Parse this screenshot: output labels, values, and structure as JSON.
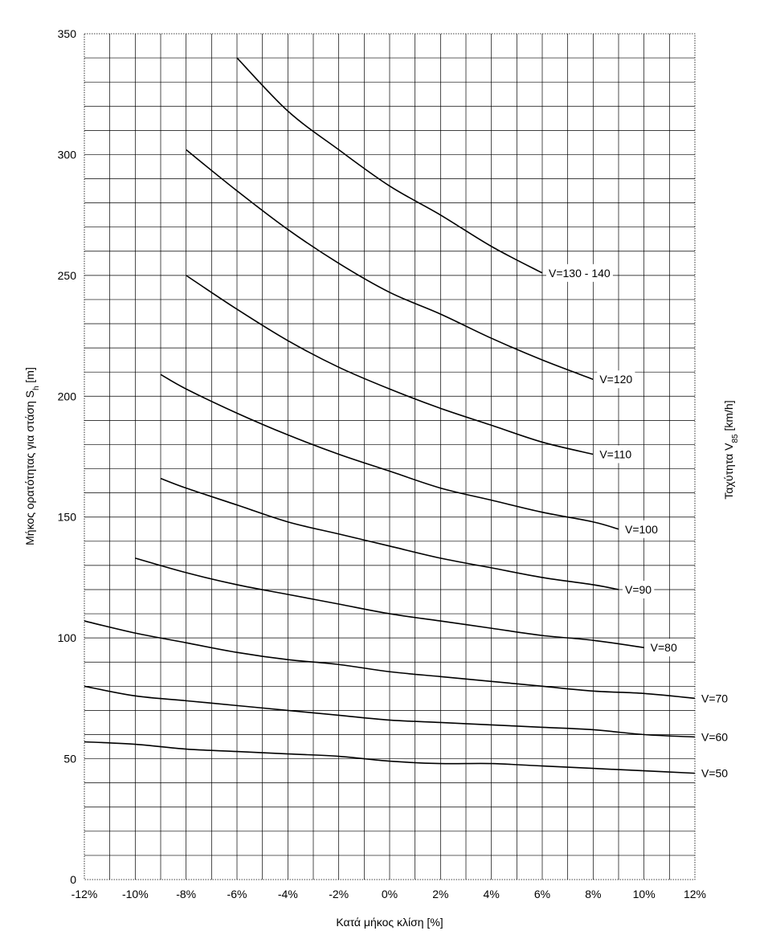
{
  "chart_data": {
    "type": "line",
    "title": "",
    "xlabel": "Κατά μήκος κλίση [%]",
    "ylabel_main": "Μήκος ορατότητας για στάση S",
    "ylabel_sub": "h",
    "ylabel_unit": " [m]",
    "right_label_main": "Ταχύτητα V",
    "right_label_sub": "85",
    "right_label_unit": " [km/h]",
    "xlim": [
      -12,
      12
    ],
    "ylim": [
      0,
      350
    ],
    "x_ticks": [
      -12,
      -10,
      -8,
      -6,
      -4,
      -2,
      0,
      2,
      4,
      6,
      8,
      10,
      12
    ],
    "x_tick_labels": [
      "-12%",
      "-10%",
      "-8%",
      "-6%",
      "-4%",
      "-2%",
      "0%",
      "2%",
      "4%",
      "6%",
      "8%",
      "10%",
      "12%"
    ],
    "y_ticks": [
      0,
      50,
      100,
      150,
      200,
      250,
      300,
      350
    ],
    "y_tick_labels": [
      "0",
      "50",
      "100",
      "150",
      "200",
      "250",
      "300",
      "350"
    ],
    "x_grid_step": 1,
    "y_grid_step": 10,
    "grid": true,
    "series": [
      {
        "name": "V=130 - 140",
        "x": [
          -6,
          -4,
          -2,
          0,
          2,
          4,
          6
        ],
        "y": [
          340,
          318,
          302,
          287,
          275,
          262,
          251
        ]
      },
      {
        "name": "V=120",
        "x": [
          -8,
          -6,
          -4,
          -2,
          0,
          2,
          4,
          6,
          8
        ],
        "y": [
          302,
          285,
          269,
          255,
          243,
          234,
          224,
          215,
          207
        ]
      },
      {
        "name": "V=110",
        "x": [
          -8,
          -6,
          -4,
          -2,
          0,
          2,
          4,
          6,
          8
        ],
        "y": [
          250,
          236,
          223,
          212,
          203,
          195,
          188,
          181,
          176
        ]
      },
      {
        "name": "V=100",
        "x": [
          -9,
          -8,
          -6,
          -4,
          -2,
          0,
          2,
          4,
          6,
          8,
          9
        ],
        "y": [
          209,
          203,
          193,
          184,
          176,
          169,
          162,
          157,
          152,
          148,
          145
        ]
      },
      {
        "name": "V=90",
        "x": [
          -9,
          -8,
          -6,
          -4,
          -2,
          0,
          2,
          4,
          6,
          8,
          9
        ],
        "y": [
          166,
          162,
          155,
          148,
          143,
          138,
          133,
          129,
          125,
          122,
          120
        ]
      },
      {
        "name": "V=80",
        "x": [
          -10,
          -8,
          -6,
          -4,
          -2,
          0,
          2,
          4,
          6,
          8,
          10
        ],
        "y": [
          133,
          127,
          122,
          118,
          114,
          110,
          107,
          104,
          101,
          99,
          96
        ]
      },
      {
        "name": "V=70",
        "x": [
          -12,
          -10,
          -8,
          -6,
          -4,
          -2,
          0,
          2,
          4,
          6,
          8,
          10,
          12
        ],
        "y": [
          107,
          102,
          98,
          94,
          91,
          89,
          86,
          84,
          82,
          80,
          78,
          77,
          75
        ]
      },
      {
        "name": "V=60",
        "x": [
          -12,
          -10,
          -8,
          -6,
          -4,
          -2,
          0,
          2,
          4,
          6,
          8,
          10,
          12
        ],
        "y": [
          80,
          76,
          74,
          72,
          70,
          68,
          66,
          65,
          64,
          63,
          62,
          60,
          59
        ]
      },
      {
        "name": "V=50",
        "x": [
          -12,
          -10,
          -8,
          -6,
          -4,
          -2,
          0,
          2,
          4,
          6,
          8,
          10,
          12
        ],
        "y": [
          57,
          56,
          54,
          53,
          52,
          51,
          49,
          48,
          48,
          47,
          46,
          45,
          44
        ]
      }
    ]
  }
}
